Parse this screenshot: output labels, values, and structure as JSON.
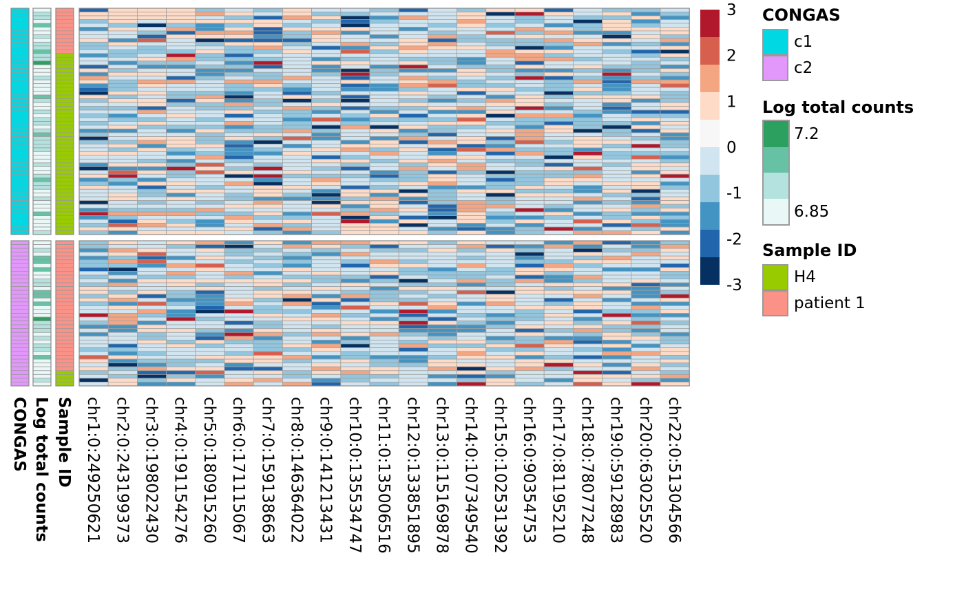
{
  "chart_data": {
    "type": "heatmap",
    "columns": [
      "chr1:0:249250621",
      "chr2:0:243199373",
      "chr3:0:198022430",
      "chr4:0:191154276",
      "chr5:0:180915260",
      "chr6:0:171115067",
      "chr7:0:159138663",
      "chr8:0:146364022",
      "chr9:0:141213431",
      "chr10:0:135534747",
      "chr11:0:135006516",
      "chr12:0:133851895",
      "chr13:0:115169878",
      "chr14:0:107349540",
      "chr15:0:102531392",
      "chr16:0:90354753",
      "chr17:0:81195210",
      "chr18:0:78077248",
      "chr19:0:59128983",
      "chr20:0:63025520",
      "chr22:0:51304566"
    ],
    "row_annotation_labels": [
      "CONGAS",
      "Log total counts",
      "Sample ID"
    ],
    "row_groups": [
      {
        "cluster": "c1",
        "rows": 60,
        "sample_ids": [
          {
            "id": "patient 1",
            "rows": 12
          },
          {
            "id": "H4",
            "rows": 48
          }
        ]
      },
      {
        "cluster": "c2",
        "rows": 38,
        "sample_ids": [
          {
            "id": "patient 1",
            "rows": 34
          },
          {
            "id": "H4",
            "rows": 4
          }
        ]
      }
    ],
    "color_scale": {
      "title": "",
      "min": -3,
      "max": 3,
      "ticks": [
        3,
        2,
        1,
        0,
        -1,
        -2,
        -3
      ],
      "colors": [
        "#b2182b",
        "#d6604d",
        "#f4a582",
        "#fddbc7",
        "#f7f7f7",
        "#d1e5f0",
        "#92c5de",
        "#4393c3",
        "#2166ac",
        "#053061"
      ]
    }
  },
  "legends": {
    "congas": {
      "title": "CONGAS",
      "items": [
        {
          "label": "c1",
          "color": "#00d9e4"
        },
        {
          "label": "c2",
          "color": "#e297fb"
        }
      ]
    },
    "log_total_counts": {
      "title": "Log total counts",
      "max_label": "7.2",
      "min_label": "6.85",
      "colors": [
        "#2ca05e",
        "#67c1a5",
        "#b4e3df",
        "#eaf7f7"
      ]
    },
    "sample_id": {
      "title": "Sample ID",
      "items": [
        {
          "label": "H4",
          "color": "#99cc00"
        },
        {
          "label": "patient 1",
          "color": "#fa9288"
        }
      ]
    }
  }
}
